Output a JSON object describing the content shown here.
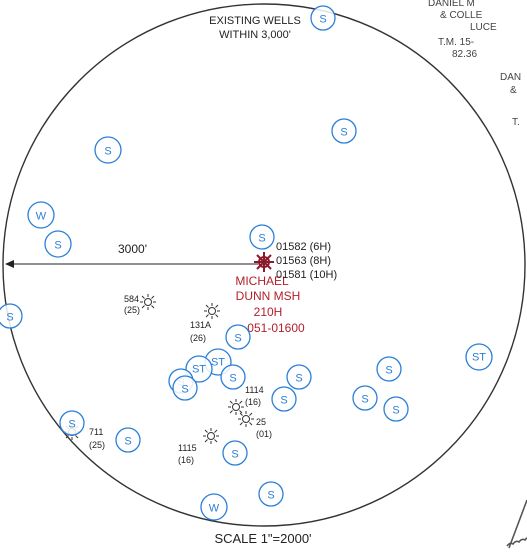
{
  "title_lines": [
    "EXISTING WELLS",
    "WITHIN 3,000'"
  ],
  "radius_label": "3000'",
  "scale_label": "SCALE 1\"=2000'",
  "subject_well": {
    "lines": [
      "MICHAEL",
      "DUNN MSH",
      "210H",
      "051-01600"
    ],
    "color": "#b3202c"
  },
  "nearby_permits": [
    "01582 (6H)",
    "01563 (8H)",
    "01581 (10H)"
  ],
  "corner_text": [
    "DANIEL M",
    "& COLLE",
    "LUCE",
    "T.M. 15-",
    "82.36",
    "DAN",
    "&",
    "T."
  ],
  "legend_symbol_letters": {
    "spring": "S",
    "water_well": "W",
    "stock_tank": "ST"
  },
  "symbol_color": "#2a7fd8",
  "gas_wells": [
    {
      "id": "584",
      "sub": "(25)"
    },
    {
      "id": "131A",
      "sub": "(26)"
    },
    {
      "id": "1114",
      "sub": "(16)"
    },
    {
      "id": "25",
      "sub": "(01)"
    },
    {
      "id": "1115",
      "sub": "(16)"
    },
    {
      "id": "711",
      "sub": "(25)"
    }
  ]
}
